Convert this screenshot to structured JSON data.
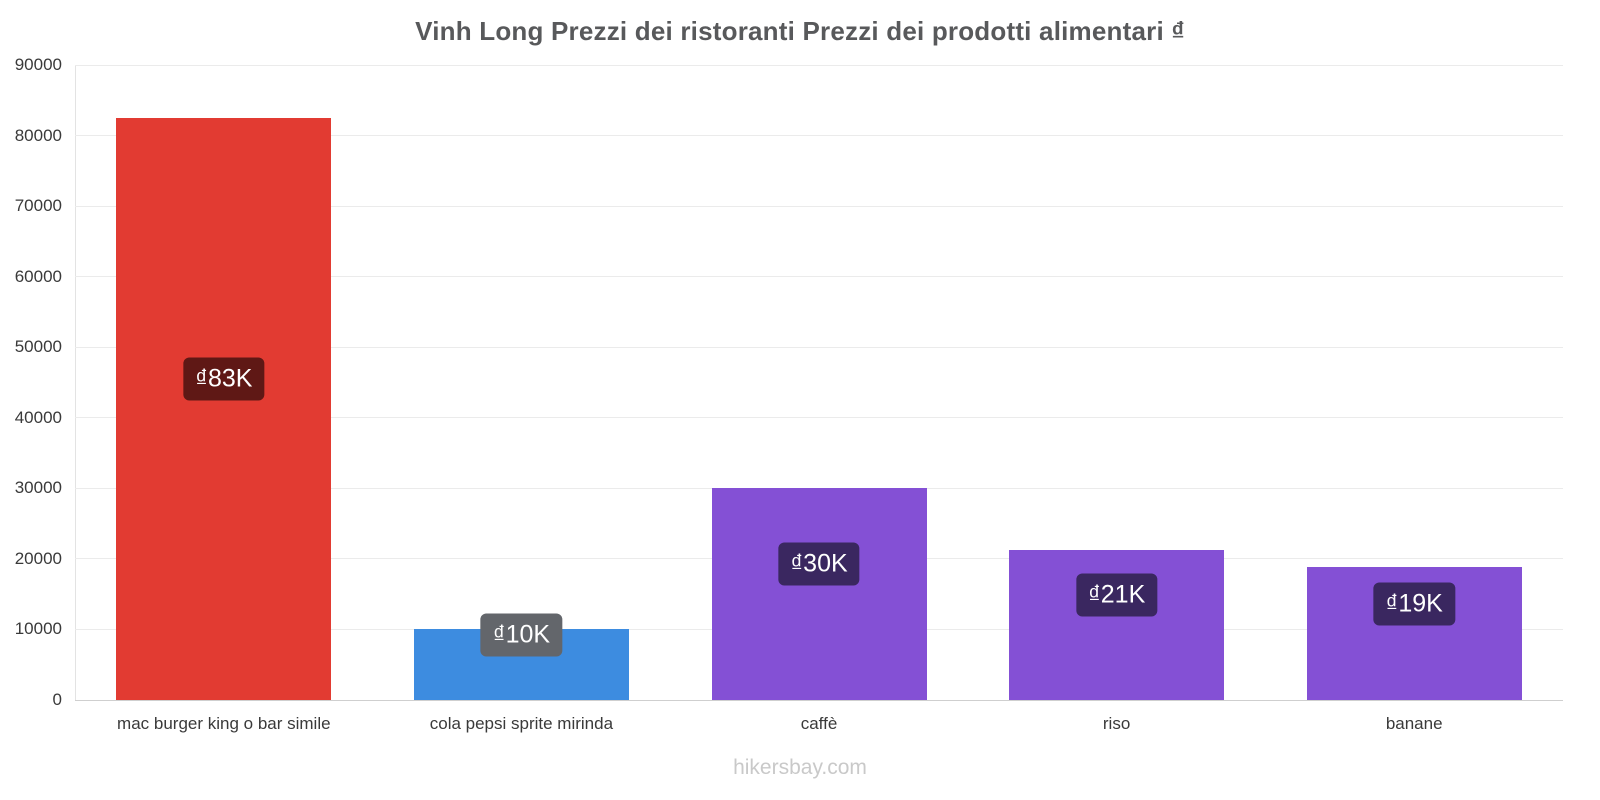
{
  "footer": "hikersbay.com",
  "chart_data": {
    "type": "bar",
    "title": "Vinh Long Prezzi dei ristoranti Prezzi dei prodotti alimentari ₫",
    "categories": [
      "mac burger king o bar simile",
      "cola pepsi sprite mirinda",
      "caffè",
      "riso",
      "banane"
    ],
    "values": [
      82500,
      10000,
      30000,
      21250,
      18800
    ],
    "value_labels": [
      "₫83K",
      "₫10K",
      "₫30K",
      "₫21K",
      "₫19K"
    ],
    "bar_colors": [
      "#e23b32",
      "#3d8ce0",
      "#8450d5",
      "#8450d5",
      "#8450d5"
    ],
    "label_bg_colors": [
      "#5f1815",
      "#63666b",
      "#3a2760",
      "#3a2760",
      "#3a2760"
    ],
    "currency": "₫",
    "xlabel": "",
    "ylabel": "",
    "ylim": [
      0,
      90000
    ],
    "ytick_step": 10000,
    "grid": true,
    "legend": false
  }
}
